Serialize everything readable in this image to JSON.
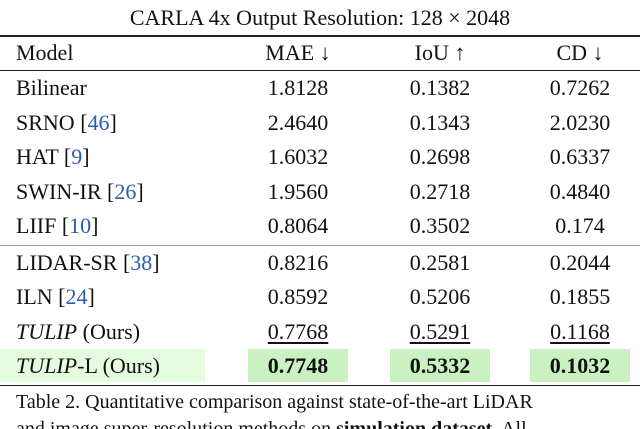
{
  "table": {
    "title": "CARLA 4x Output Resolution: 128 × 2048",
    "header": [
      "Model",
      "MAE ↓",
      "IoU ↑",
      "CD ↓"
    ],
    "groups": [
      [
        {
          "model": "Bilinear",
          "values": [
            "1.8128",
            "0.1382",
            "0.7262"
          ]
        },
        {
          "model": "SRNO ",
          "cite": "[46]",
          "values": [
            "2.4640",
            "0.1343",
            "2.0230"
          ]
        },
        {
          "model": "HAT ",
          "cite": "[9]",
          "values": [
            "1.6032",
            "0.2698",
            "0.6337"
          ]
        },
        {
          "model": "SWIN-IR ",
          "cite": "[26]",
          "values": [
            "1.9560",
            "0.2718",
            "0.4840"
          ]
        },
        {
          "model": "LIIF ",
          "cite": "[10]",
          "values": [
            "0.8064",
            "0.3502",
            "0.174"
          ]
        }
      ],
      [
        {
          "model": "LIDAR-SR ",
          "cite": "[38]",
          "values": [
            "0.8216",
            "0.2581",
            "0.2044"
          ]
        },
        {
          "model": "ILN ",
          "cite": "[24]",
          "values": [
            "0.8592",
            "0.5206",
            "0.1855"
          ]
        },
        {
          "model_italic": "TULIP",
          "model": " (Ours)",
          "values": [
            "0.7768",
            "0.5291",
            "0.1168"
          ],
          "style": "underline"
        },
        {
          "model_italic": "TULIP",
          "model": "-L (Ours)",
          "values": [
            "0.7748",
            "0.5332",
            "0.1032"
          ],
          "style": "bold",
          "highlight": true
        }
      ]
    ],
    "caption": [
      {
        "label": "Table 2.",
        "text": "Quantitative comparison against state-of-the-art LiDAR"
      },
      {
        "text": "and image super-resolution methods on ",
        "bold": "simulation dataset",
        "after": ". All"
      }
    ]
  }
}
